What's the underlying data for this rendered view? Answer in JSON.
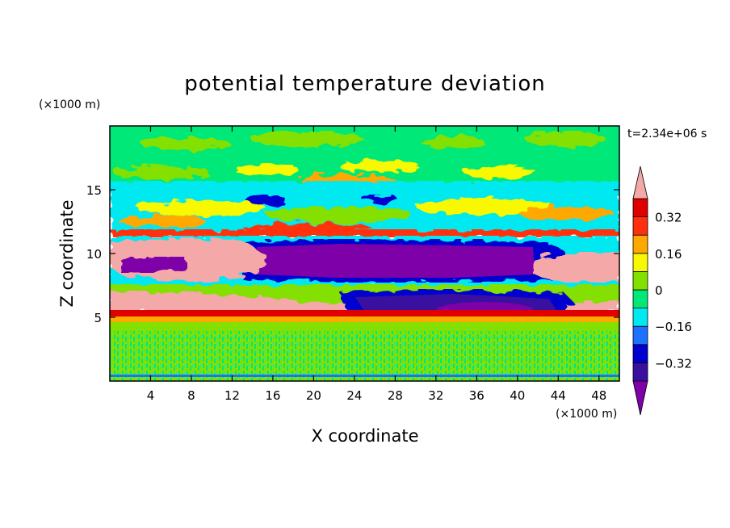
{
  "chart_data": {
    "type": "heatmap",
    "title": "potential temperature deviation",
    "xlabel": "X coordinate",
    "ylabel": "Z coordinate",
    "x_unit": "(×1000 m)",
    "y_unit": "(×1000 m)",
    "time_label": "t=2.34e+06 s",
    "xlim": [
      0,
      50
    ],
    "ylim": [
      0,
      20
    ],
    "x_ticks": [
      4,
      8,
      12,
      16,
      20,
      24,
      28,
      32,
      36,
      40,
      44,
      48
    ],
    "y_ticks": [
      5,
      10,
      15
    ],
    "colorbar": {
      "levels": [
        -0.4,
        -0.32,
        -0.24,
        -0.16,
        -0.08,
        0,
        0.08,
        0.16,
        0.24,
        0.32,
        0.4
      ],
      "labeled_ticks": [
        {
          "value": 0.32,
          "label": "0.32"
        },
        {
          "value": 0.16,
          "label": "0.16"
        },
        {
          "value": 0,
          "label": "0"
        },
        {
          "value": -0.16,
          "label": "−0.16"
        },
        {
          "value": -0.32,
          "label": "−0.32"
        }
      ],
      "colors": [
        "#7e00a8",
        "#3a10a0",
        "#0000d0",
        "#1e70ff",
        "#00e8f0",
        "#00e878",
        "#84e000",
        "#f8f800",
        "#ffa800",
        "#ff3010",
        "#e00000",
        "#f4a8a8"
      ],
      "under_color": "#7e00a8",
      "over_color": "#f4a8a8"
    }
  }
}
